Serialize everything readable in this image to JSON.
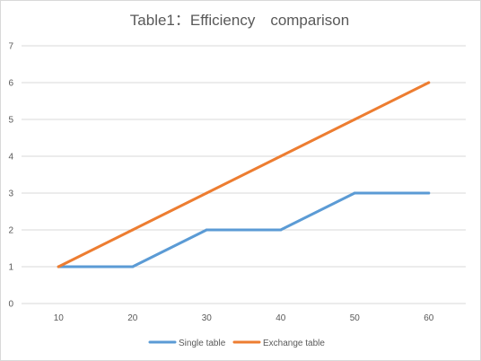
{
  "chart_data": {
    "type": "line",
    "title": "Table1：Efficiency　comparison",
    "xlabel": "",
    "ylabel": "",
    "x": [
      10,
      20,
      30,
      40,
      50,
      60
    ],
    "ylim": [
      0,
      7
    ],
    "yticks": [
      0,
      1,
      2,
      3,
      4,
      5,
      6,
      7
    ],
    "grid": true,
    "legend_position": "bottom",
    "series": [
      {
        "name": "Single table",
        "color": "#5b9bd5",
        "values": [
          1,
          1,
          2,
          2,
          3,
          3
        ]
      },
      {
        "name": "Exchange table",
        "color": "#ed7d31",
        "values": [
          1,
          2,
          3,
          4,
          5,
          6
        ]
      }
    ]
  }
}
